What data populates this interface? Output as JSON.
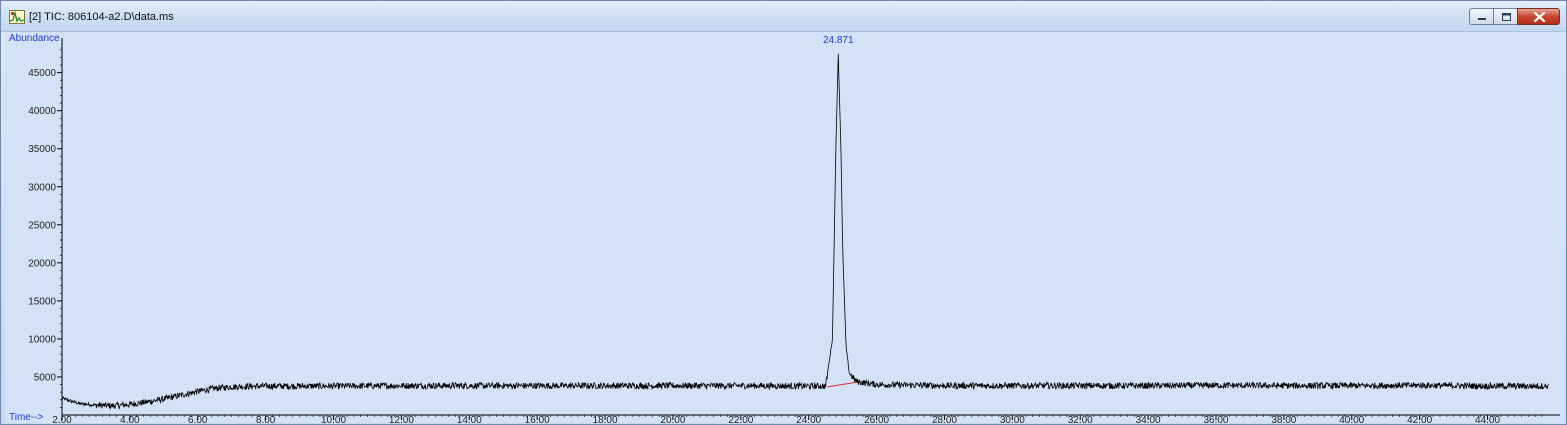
{
  "window": {
    "title": "[2] TIC: 806104-a2.D\\data.ms",
    "icon": "chromatogram-app-icon",
    "controls": [
      "minimize-icon",
      "maximize-icon",
      "close-icon"
    ]
  },
  "colors": {
    "plot_background": "#d4e2f8",
    "trace": "#000000",
    "baseline": "#e03030",
    "label_blue": "#1f3bd1"
  },
  "chart_data": {
    "type": "line",
    "ylabel": "Abundance",
    "xlabel": "Time-->",
    "xlim": [
      2.0,
      45.9
    ],
    "ylim": [
      0,
      48500
    ],
    "x_ticks": [
      2,
      4,
      6,
      8,
      10,
      12,
      14,
      16,
      18,
      20,
      22,
      24,
      26,
      28,
      30,
      32,
      34,
      36,
      38,
      40,
      42,
      44
    ],
    "x_tick_labels": [
      "2.00",
      "4.00",
      "6.00",
      "8.00",
      "10.00",
      "12.00",
      "14.00",
      "16.00",
      "18.00",
      "20.00",
      "22.00",
      "24.00",
      "26.00",
      "28.00",
      "30.00",
      "32.00",
      "34.00",
      "36.00",
      "38.00",
      "40.00",
      "42.00",
      "44.00"
    ],
    "y_ticks": [
      5000,
      10000,
      15000,
      20000,
      25000,
      30000,
      35000,
      40000,
      45000
    ],
    "y_tick_labels": [
      "5000",
      "10000",
      "15000",
      "20000",
      "25000",
      "30000",
      "35000",
      "40000",
      "45000"
    ],
    "grid": false,
    "series": [
      {
        "x": [
          2.0,
          2.5,
          3.0,
          3.5,
          4.0,
          4.5,
          5.0,
          5.5,
          6.0,
          6.5,
          7.0,
          8.0,
          10.0,
          12.0,
          14.0,
          16.0,
          18.0,
          20.0,
          22.0,
          24.0,
          24.5,
          24.7,
          24.8,
          24.871,
          24.95,
          25.0,
          25.1,
          25.2,
          25.4,
          26.0,
          28.0,
          30.0,
          32.0,
          34.0,
          36.0,
          38.0,
          40.0,
          42.0,
          44.0,
          45.8
        ],
        "y": [
          2200,
          1500,
          1300,
          1200,
          1400,
          1700,
          2100,
          2600,
          3100,
          3500,
          3700,
          3800,
          3800,
          3850,
          3850,
          3850,
          3850,
          3850,
          3850,
          3800,
          3800,
          10000,
          35000,
          47500,
          35000,
          22000,
          9000,
          5500,
          4400,
          4000,
          3850,
          3850,
          3850,
          3850,
          3900,
          3850,
          3850,
          3900,
          3800,
          3800
        ]
      }
    ],
    "baseline_segment": {
      "x": [
        24.55,
        25.4
      ],
      "y": [
        3700,
        4300
      ]
    },
    "annotations": [
      {
        "x": 24.871,
        "text": "24.871"
      }
    ]
  }
}
